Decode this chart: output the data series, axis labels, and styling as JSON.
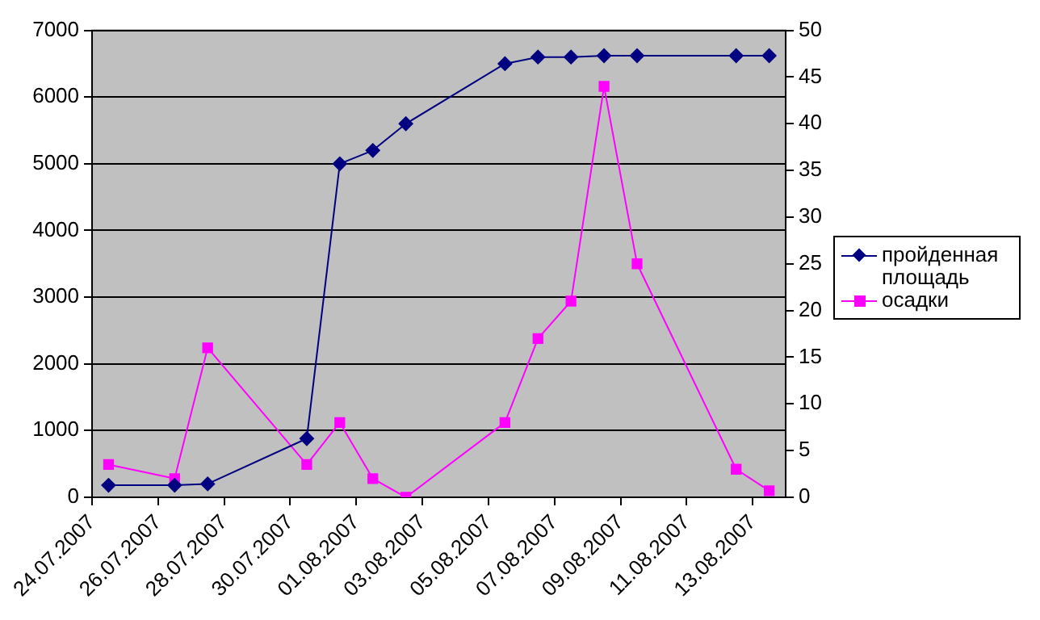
{
  "chart_data": {
    "type": "line",
    "x": [
      "2007-07-24T12:00",
      "2007-07-26T12:00",
      "2007-07-27T12:00",
      "2007-07-30T12:00",
      "2007-07-31T12:00",
      "2007-08-01T12:00",
      "2007-08-02T12:00",
      "2007-08-05T12:00",
      "2007-08-06T12:00",
      "2007-08-07T12:00",
      "2007-08-08T12:00",
      "2007-08-09T12:00",
      "2007-08-12T12:00",
      "2007-08-13T12:00"
    ],
    "series": [
      {
        "name": "пройденная площадь",
        "color": "#000080",
        "marker": "diamond",
        "values": [
          180,
          180,
          200,
          880,
          5000,
          5200,
          5600,
          6500,
          6600,
          6600,
          6620,
          6620,
          6620,
          6620
        ]
      },
      {
        "name": "осадки",
        "color": "#ff00ff",
        "marker": "square",
        "axis": "y2",
        "values": [
          3.5,
          2,
          16,
          3.5,
          8,
          2,
          0,
          8,
          17,
          21,
          44,
          25,
          3,
          0.7
        ]
      }
    ],
    "xlim": [
      "2007-07-24",
      "2007-08-14"
    ],
    "xticks": [
      {
        "value": "2007-07-24",
        "label": "24.07.2007"
      },
      {
        "value": "2007-07-26",
        "label": "26.07.2007"
      },
      {
        "value": "2007-07-28",
        "label": "28.07.2007"
      },
      {
        "value": "2007-07-30",
        "label": "30.07.2007"
      },
      {
        "value": "2007-08-01",
        "label": "01.08.2007"
      },
      {
        "value": "2007-08-03",
        "label": "03.08.2007"
      },
      {
        "value": "2007-08-05",
        "label": "05.08.2007"
      },
      {
        "value": "2007-08-07",
        "label": "07.08.2007"
      },
      {
        "value": "2007-08-09",
        "label": "09.08.2007"
      },
      {
        "value": "2007-08-11",
        "label": "11.08.2007"
      },
      {
        "value": "2007-08-13",
        "label": "13.08.2007"
      }
    ],
    "ylim": [
      0,
      7000
    ],
    "yticks": [
      0,
      1000,
      2000,
      3000,
      4000,
      5000,
      6000,
      7000
    ],
    "y2lim": [
      0,
      50
    ],
    "y2ticks": [
      0,
      5,
      10,
      15,
      20,
      25,
      30,
      35,
      40,
      45,
      50
    ],
    "grid": "y",
    "legend": "right",
    "line_style": "solid"
  }
}
